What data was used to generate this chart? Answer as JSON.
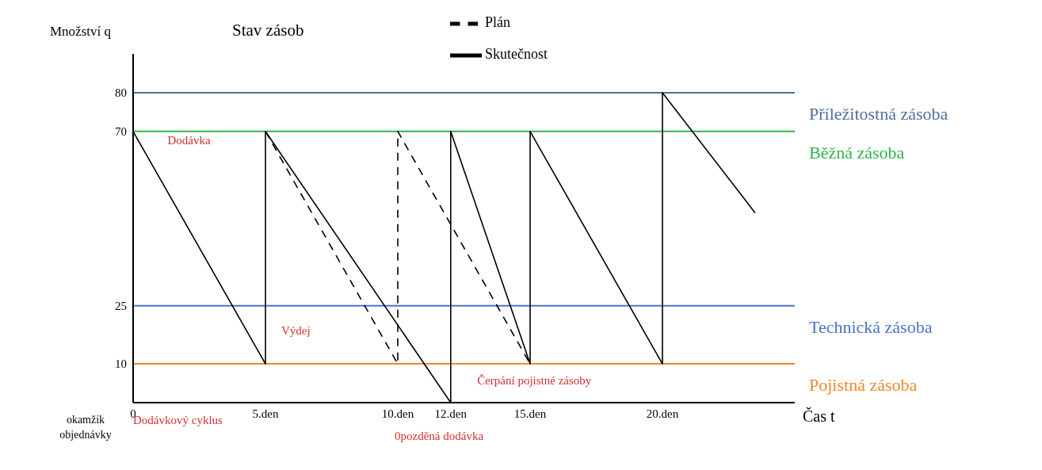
{
  "chart_data": {
    "type": "line",
    "title": "Stav zásob",
    "xlabel": "Čas t",
    "ylabel": "Množství q",
    "xlim": [
      0,
      25
    ],
    "xticks": [
      0,
      {
        "value": 5,
        "label": "5.den"
      },
      {
        "value": 10,
        "label": "10.den"
      },
      {
        "value": 12,
        "label": "12.den"
      },
      {
        "value": 15,
        "label": "15.den"
      },
      {
        "value": 20,
        "label": "20.den"
      }
    ],
    "ylim": [
      0,
      90
    ],
    "yticks": [
      10,
      25,
      70,
      80
    ],
    "series": [
      {
        "name": "Plán",
        "color": "#000000",
        "line_style": "dashed",
        "x": [
          5,
          10,
          10,
          15
        ],
        "values": [
          70,
          10,
          70,
          10
        ]
      },
      {
        "name": "Skutečnost",
        "color": "#000000",
        "line_style": "solid",
        "x": [
          0,
          5,
          5,
          12,
          12,
          15,
          15,
          20,
          20,
          23.5
        ],
        "values": [
          70,
          10,
          70,
          0,
          70,
          10,
          70,
          10,
          80,
          49
        ]
      }
    ],
    "ref_lines": [
      {
        "axis": "y",
        "value": 80,
        "label": "Příležitostná zásoba",
        "color": "#4f6f9a"
      },
      {
        "axis": "y",
        "value": 70,
        "label": "Běžná zásoba",
        "color": "#2fb34a"
      },
      {
        "axis": "y",
        "value": 25,
        "label": "Technická zásoba",
        "color": "#4a74c9"
      },
      {
        "axis": "y",
        "value": 10,
        "label": "Pojistná zásoba",
        "color": "#f0882a"
      }
    ],
    "annotations": [
      "Dodávka",
      "Výdej",
      "Čerpání pojistné zásoby",
      "Dodávkový cyklus",
      "0pozděná dodávka",
      "okamžik objednávky"
    ],
    "legend": "top",
    "marker": "none"
  }
}
